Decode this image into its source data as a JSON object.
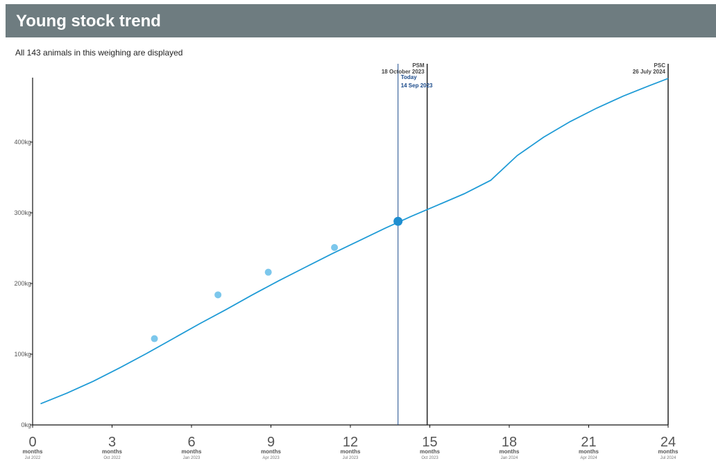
{
  "header": {
    "title": "Young stock trend"
  },
  "subtitle": "All 143 animals in this weighing are displayed",
  "colors": {
    "header_bg": "#6e7c80",
    "trend_line": "#1f9bd6",
    "points": "#7cc7ec",
    "today_marker": "#1f8ed0",
    "today_line": "#1a4a8a",
    "event_line": "#222222"
  },
  "chart_data": {
    "type": "line",
    "title": "Young stock trend",
    "xlabel": "",
    "ylabel": "",
    "xlim": [
      0,
      24
    ],
    "ylim": [
      0,
      500
    ],
    "grid": false,
    "x_ticks": [
      {
        "value": 0,
        "label": "0",
        "unit": "months",
        "date": "Jul 2022"
      },
      {
        "value": 3,
        "label": "3",
        "unit": "months",
        "date": "Oct 2022"
      },
      {
        "value": 6,
        "label": "6",
        "unit": "months",
        "date": "Jan 2023"
      },
      {
        "value": 9,
        "label": "9",
        "unit": "months",
        "date": "Apr 2023"
      },
      {
        "value": 12,
        "label": "12",
        "unit": "months",
        "date": "Jul 2023"
      },
      {
        "value": 15,
        "label": "15",
        "unit": "months",
        "date": "Oct 2023"
      },
      {
        "value": 18,
        "label": "18",
        "unit": "months",
        "date": "Jan 2024"
      },
      {
        "value": 21,
        "label": "21",
        "unit": "months",
        "date": "Apr 2024"
      },
      {
        "value": 24,
        "label": "24",
        "unit": "months",
        "date": "Jul 2024"
      }
    ],
    "y_ticks": [
      {
        "value": 0,
        "label": "0kg"
      },
      {
        "value": 100,
        "label": "100kg"
      },
      {
        "value": 200,
        "label": "200kg"
      },
      {
        "value": 300,
        "label": "300kg"
      },
      {
        "value": 400,
        "label": "400kg"
      }
    ],
    "series": [
      {
        "type": "line",
        "x": [
          0.3,
          1.3,
          2.3,
          3.3,
          4.3,
          5.3,
          6.3,
          7.3,
          8.3,
          9.3,
          10.3,
          11.3,
          12.3,
          13.3,
          14.3,
          15.3,
          16.3,
          17.3,
          18.3,
          19.3,
          20.3,
          21.3,
          22.3,
          23.3,
          24.0
        ],
        "y": [
          30,
          45,
          62,
          81,
          101,
          122,
          143,
          163,
          184,
          204,
          223,
          242,
          260,
          278,
          295,
          311,
          327,
          346,
          381,
          407,
          429,
          448,
          465,
          480,
          490
        ]
      },
      {
        "type": "scatter",
        "x": [
          4.6,
          7.0,
          8.9,
          11.4
        ],
        "y": [
          122,
          184,
          216,
          251
        ]
      }
    ],
    "today_point": {
      "x": 13.8,
      "y": 288
    },
    "markers": [
      {
        "x": 13.8,
        "label": "Today",
        "date": "14 Sep 2023"
      },
      {
        "x": 14.9,
        "label": "PSM",
        "date": "18 October 2023"
      },
      {
        "x": 24.0,
        "label": "PSC",
        "date": "26 July 2024"
      }
    ]
  }
}
